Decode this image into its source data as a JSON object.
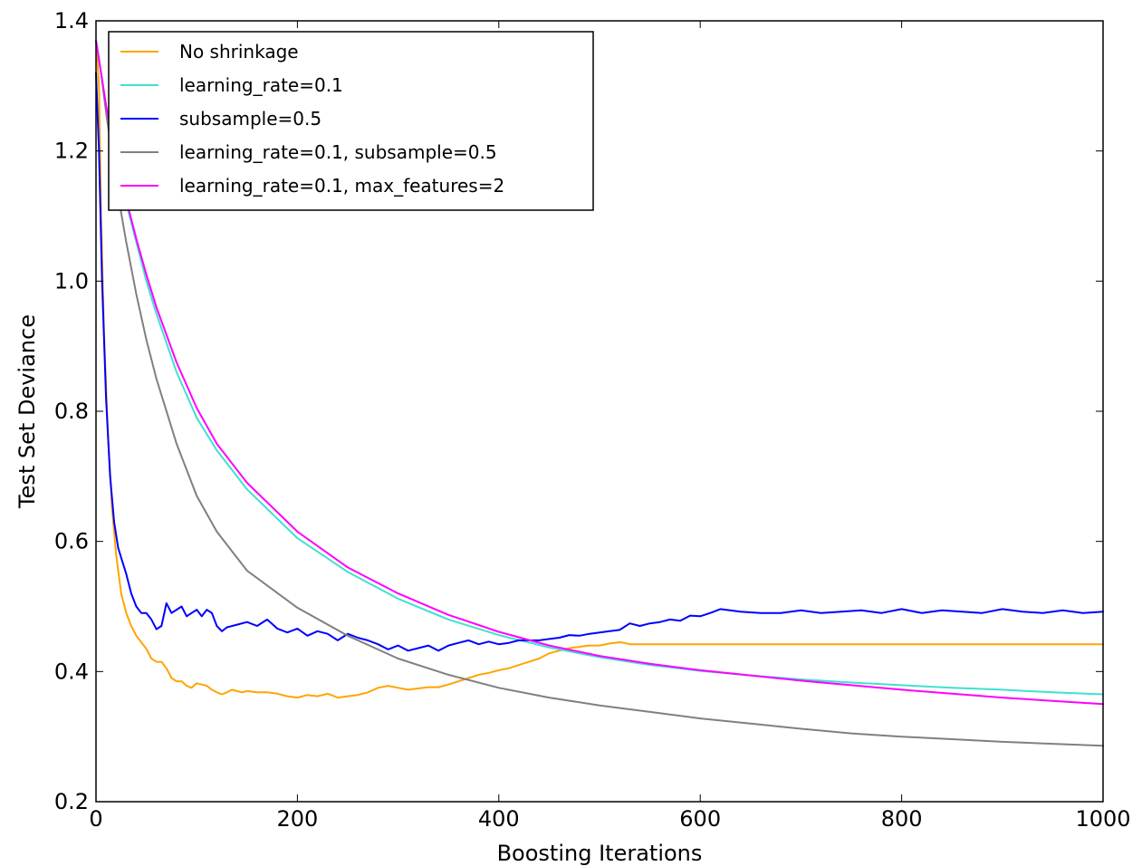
{
  "chart_data": {
    "type": "line",
    "title": "",
    "xlabel": "Boosting Iterations",
    "ylabel": "Test Set Deviance",
    "xlim": [
      0,
      1000
    ],
    "ylim": [
      0.2,
      1.4
    ],
    "xticks": [
      0,
      200,
      400,
      600,
      800,
      1000
    ],
    "xtick_labels": [
      "0",
      "200",
      "400",
      "600",
      "800",
      "1000"
    ],
    "yticks": [
      0.2,
      0.4,
      0.6,
      0.8,
      1.0,
      1.2,
      1.4
    ],
    "ytick_labels": [
      "0.2",
      "0.4",
      "0.6",
      "0.8",
      "1.0",
      "1.2",
      "1.4"
    ],
    "grid": false,
    "legend_position": "top-left",
    "series": [
      {
        "name": "No shrinkage",
        "color": "#ffa500",
        "x": [
          0,
          3,
          5,
          8,
          12,
          16,
          20,
          25,
          30,
          35,
          40,
          45,
          50,
          55,
          60,
          65,
          70,
          75,
          80,
          85,
          90,
          95,
          100,
          105,
          110,
          115,
          120,
          125,
          130,
          135,
          140,
          145,
          150,
          160,
          170,
          180,
          190,
          200,
          210,
          220,
          230,
          240,
          250,
          260,
          270,
          280,
          290,
          300,
          310,
          320,
          330,
          340,
          350,
          360,
          370,
          380,
          390,
          400,
          410,
          420,
          430,
          440,
          450,
          460,
          470,
          480,
          490,
          500,
          510,
          520,
          525,
          530,
          600,
          700,
          800,
          900,
          1000
        ],
        "y": [
          1.37,
          1.3,
          1.1,
          0.92,
          0.76,
          0.65,
          0.58,
          0.52,
          0.49,
          0.47,
          0.455,
          0.445,
          0.435,
          0.42,
          0.415,
          0.415,
          0.405,
          0.39,
          0.385,
          0.385,
          0.378,
          0.375,
          0.382,
          0.38,
          0.378,
          0.372,
          0.368,
          0.365,
          0.368,
          0.372,
          0.37,
          0.368,
          0.37,
          0.368,
          0.368,
          0.366,
          0.362,
          0.36,
          0.364,
          0.362,
          0.366,
          0.36,
          0.362,
          0.364,
          0.368,
          0.375,
          0.378,
          0.375,
          0.372,
          0.374,
          0.376,
          0.376,
          0.38,
          0.385,
          0.39,
          0.395,
          0.398,
          0.402,
          0.405,
          0.41,
          0.415,
          0.42,
          0.428,
          0.432,
          0.436,
          0.438,
          0.44,
          0.44,
          0.443,
          0.445,
          0.444,
          0.442,
          0.442,
          0.442,
          0.442,
          0.442,
          0.442
        ]
      },
      {
        "name": "learning_rate=0.1",
        "color": "#40e0d0",
        "x": [
          0,
          5,
          10,
          20,
          30,
          40,
          50,
          60,
          80,
          100,
          120,
          150,
          200,
          250,
          300,
          350,
          400,
          450,
          500,
          550,
          600,
          650,
          700,
          750,
          800,
          850,
          900,
          950,
          1000
        ],
        "y": [
          1.37,
          1.32,
          1.27,
          1.19,
          1.12,
          1.06,
          1.0,
          0.95,
          0.86,
          0.79,
          0.74,
          0.68,
          0.605,
          0.553,
          0.512,
          0.48,
          0.456,
          0.437,
          0.422,
          0.41,
          0.401,
          0.394,
          0.388,
          0.383,
          0.379,
          0.375,
          0.372,
          0.368,
          0.365
        ]
      },
      {
        "name": "subsample=0.5",
        "color": "#0000ff",
        "x": [
          0,
          3,
          6,
          10,
          14,
          18,
          22,
          26,
          30,
          35,
          40,
          45,
          50,
          55,
          60,
          65,
          70,
          75,
          80,
          85,
          90,
          95,
          100,
          105,
          110,
          115,
          120,
          125,
          130,
          140,
          150,
          160,
          170,
          180,
          190,
          200,
          210,
          220,
          230,
          240,
          250,
          260,
          270,
          280,
          290,
          300,
          310,
          320,
          330,
          340,
          350,
          360,
          370,
          380,
          390,
          400,
          410,
          420,
          430,
          440,
          450,
          460,
          470,
          480,
          490,
          500,
          510,
          520,
          530,
          540,
          550,
          560,
          570,
          580,
          590,
          600,
          610,
          620,
          640,
          660,
          680,
          700,
          720,
          740,
          760,
          780,
          800,
          820,
          840,
          860,
          880,
          900,
          920,
          940,
          960,
          980,
          1000
        ],
        "y": [
          1.32,
          1.2,
          1.0,
          0.82,
          0.7,
          0.63,
          0.59,
          0.57,
          0.55,
          0.52,
          0.5,
          0.49,
          0.49,
          0.48,
          0.465,
          0.47,
          0.505,
          0.49,
          0.495,
          0.5,
          0.485,
          0.49,
          0.495,
          0.485,
          0.495,
          0.49,
          0.47,
          0.462,
          0.468,
          0.472,
          0.476,
          0.47,
          0.48,
          0.466,
          0.46,
          0.466,
          0.455,
          0.462,
          0.458,
          0.448,
          0.458,
          0.452,
          0.448,
          0.442,
          0.434,
          0.44,
          0.432,
          0.436,
          0.44,
          0.432,
          0.44,
          0.444,
          0.448,
          0.442,
          0.446,
          0.442,
          0.444,
          0.448,
          0.448,
          0.448,
          0.45,
          0.452,
          0.456,
          0.455,
          0.458,
          0.46,
          0.462,
          0.464,
          0.474,
          0.47,
          0.474,
          0.476,
          0.48,
          0.478,
          0.486,
          0.485,
          0.49,
          0.496,
          0.492,
          0.49,
          0.49,
          0.494,
          0.49,
          0.492,
          0.494,
          0.49,
          0.496,
          0.49,
          0.494,
          0.492,
          0.49,
          0.496,
          0.492,
          0.49,
          0.494,
          0.49,
          0.492
        ]
      },
      {
        "name": "learning_rate=0.1, subsample=0.5",
        "color": "#808080",
        "x": [
          0,
          5,
          10,
          20,
          30,
          40,
          50,
          60,
          80,
          100,
          120,
          150,
          200,
          250,
          300,
          350,
          400,
          450,
          500,
          550,
          600,
          650,
          700,
          750,
          800,
          850,
          900,
          950,
          1000
        ],
        "y": [
          1.37,
          1.32,
          1.26,
          1.15,
          1.06,
          0.98,
          0.91,
          0.85,
          0.75,
          0.67,
          0.615,
          0.555,
          0.498,
          0.455,
          0.42,
          0.395,
          0.375,
          0.36,
          0.348,
          0.338,
          0.328,
          0.32,
          0.312,
          0.305,
          0.3,
          0.296,
          0.292,
          0.289,
          0.286
        ]
      },
      {
        "name": "learning_rate=0.1, max_features=2",
        "color": "#ff00ff",
        "x": [
          0,
          5,
          10,
          20,
          30,
          40,
          50,
          60,
          80,
          100,
          120,
          150,
          200,
          250,
          300,
          350,
          400,
          450,
          500,
          550,
          600,
          650,
          700,
          750,
          800,
          850,
          900,
          950,
          1000
        ],
        "y": [
          1.37,
          1.32,
          1.27,
          1.19,
          1.125,
          1.065,
          1.01,
          0.96,
          0.875,
          0.805,
          0.75,
          0.69,
          0.615,
          0.56,
          0.52,
          0.487,
          0.461,
          0.44,
          0.424,
          0.412,
          0.402,
          0.394,
          0.386,
          0.379,
          0.372,
          0.366,
          0.36,
          0.355,
          0.35
        ]
      }
    ]
  }
}
